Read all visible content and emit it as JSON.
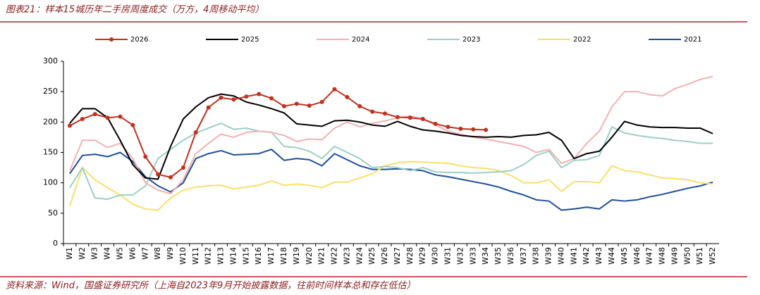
{
  "chart_data": {
    "type": "line",
    "title": "图表21：样本15城历年二手房周度成交（万方，4周移动平均）",
    "source": "资料来源：Wind，国盛证券研究所（上海自2023年9月开始披露数据，往前时间样本总和存在低估）",
    "categories": [
      "W1",
      "W2",
      "W3",
      "W4",
      "W5",
      "W6",
      "W7",
      "W8",
      "W9",
      "W10",
      "W11",
      "W12",
      "W13",
      "W14",
      "W15",
      "W16",
      "W17",
      "W18",
      "W19",
      "W20",
      "W21",
      "W22",
      "W23",
      "W24",
      "W25",
      "W26",
      "W27",
      "W28",
      "W29",
      "W30",
      "W31",
      "W32",
      "W33",
      "W34",
      "W35",
      "W36",
      "W37",
      "W38",
      "W39",
      "W40",
      "W41",
      "W42",
      "W43",
      "W44",
      "W45",
      "W46",
      "W47",
      "W48",
      "W49",
      "W50",
      "W51",
      "W52"
    ],
    "ylim": [
      0,
      300
    ],
    "yticks": [
      0,
      50,
      100,
      150,
      200,
      250,
      300
    ],
    "legend": "top",
    "series": [
      {
        "name": "2026",
        "color": "#c0311f",
        "marker": "circle",
        "values": [
          194,
          205,
          213,
          207,
          209,
          195,
          143,
          114,
          109,
          125,
          183,
          224,
          240,
          237,
          242,
          246,
          239,
          226,
          230,
          227,
          233,
          254,
          241,
          226,
          217,
          214,
          208,
          207,
          205,
          197,
          192,
          189,
          188,
          187,
          null,
          null,
          null,
          null,
          null,
          null,
          null,
          null,
          null,
          null,
          null,
          null,
          null,
          null,
          null,
          null,
          null,
          null
        ]
      },
      {
        "name": "2025",
        "color": "#000000",
        "values": [
          198,
          222,
          222,
          207,
          170,
          130,
          108,
          106,
          160,
          205,
          225,
          240,
          246,
          243,
          233,
          228,
          222,
          215,
          197,
          195,
          193,
          202,
          203,
          200,
          195,
          193,
          201,
          193,
          187,
          185,
          182,
          178,
          176,
          175,
          176,
          175,
          178,
          179,
          183,
          170,
          140,
          148,
          152,
          175,
          201,
          195,
          192,
          191,
          191,
          190,
          190,
          181
        ]
      },
      {
        "name": "2024",
        "color": "#f4b1b1",
        "values": [
          120,
          170,
          170,
          158,
          165,
          140,
          100,
          88,
          82,
          105,
          148,
          165,
          180,
          175,
          183,
          185,
          183,
          178,
          168,
          172,
          171,
          190,
          200,
          192,
          198,
          202,
          207,
          210,
          205,
          195,
          185,
          180,
          175,
          172,
          168,
          164,
          160,
          150,
          155,
          132,
          140,
          165,
          185,
          225,
          250,
          250,
          245,
          243,
          255,
          262,
          270,
          275
        ]
      },
      {
        "name": "2023",
        "color": "#9ccfc6",
        "values": [
          92,
          125,
          75,
          73,
          80,
          80,
          95,
          140,
          155,
          170,
          182,
          190,
          198,
          188,
          190,
          185,
          183,
          160,
          158,
          152,
          140,
          160,
          150,
          140,
          125,
          127,
          125,
          120,
          125,
          118,
          117,
          117,
          116,
          117,
          118,
          120,
          130,
          145,
          152,
          125,
          137,
          138,
          145,
          192,
          182,
          178,
          175,
          173,
          170,
          168,
          165,
          165
        ]
      },
      {
        "name": "2022",
        "color": "#f9e06a",
        "values": [
          62,
          125,
          105,
          92,
          80,
          65,
          57,
          55,
          75,
          88,
          93,
          95,
          96,
          90,
          93,
          96,
          103,
          96,
          98,
          96,
          92,
          101,
          101,
          108,
          115,
          128,
          133,
          135,
          134,
          133,
          132,
          128,
          125,
          124,
          120,
          112,
          100,
          100,
          105,
          86,
          102,
          102,
          100,
          128,
          120,
          118,
          113,
          108,
          107,
          105,
          100,
          98
        ]
      },
      {
        "name": "2021",
        "color": "#1f4e9c",
        "values": [
          115,
          145,
          147,
          143,
          150,
          135,
          110,
          95,
          85,
          100,
          140,
          148,
          153,
          146,
          147,
          148,
          155,
          137,
          140,
          138,
          128,
          148,
          138,
          128,
          122,
          122,
          123,
          122,
          120,
          113,
          110,
          106,
          102,
          98,
          93,
          86,
          80,
          72,
          70,
          55,
          57,
          60,
          57,
          72,
          70,
          72,
          77,
          81,
          86,
          91,
          95,
          101
        ]
      }
    ]
  }
}
